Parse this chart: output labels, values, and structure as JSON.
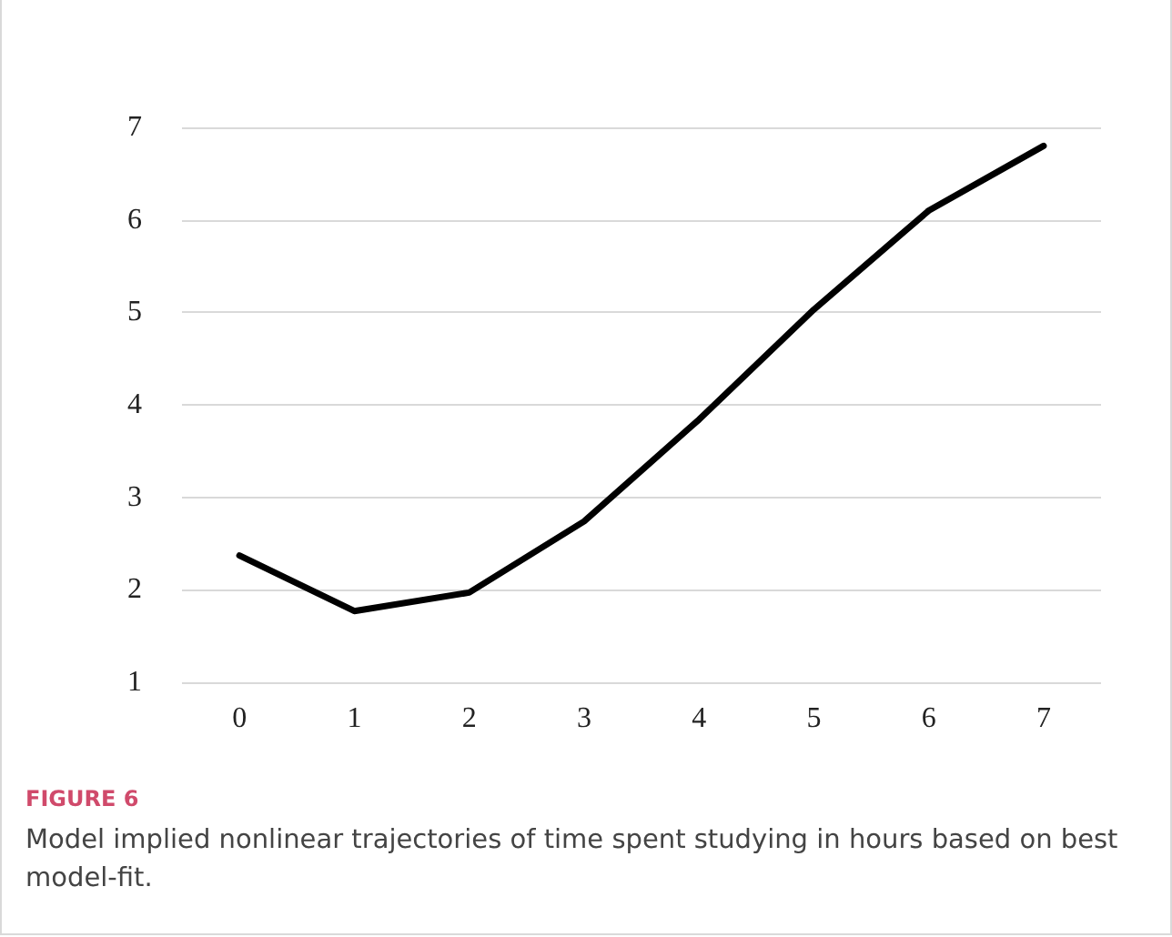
{
  "chart_data": {
    "type": "line",
    "categories": [
      "0",
      "1",
      "2",
      "3",
      "4",
      "5",
      "6",
      "7"
    ],
    "series": [
      {
        "color": "#000000",
        "values": [
          2.37,
          1.77,
          1.97,
          2.74,
          3.84,
          5.03,
          6.1,
          6.8
        ]
      }
    ],
    "ylim": [
      1,
      7
    ],
    "yticks": [
      1,
      2,
      3,
      4,
      5,
      6,
      7
    ],
    "grid": "y",
    "marker": "none",
    "line_style": "solid",
    "annotations": [
      "FIGURE 6",
      "Model implied nonlinear trajectories of time spent studying in hours based on best model-fit."
    ]
  }
}
